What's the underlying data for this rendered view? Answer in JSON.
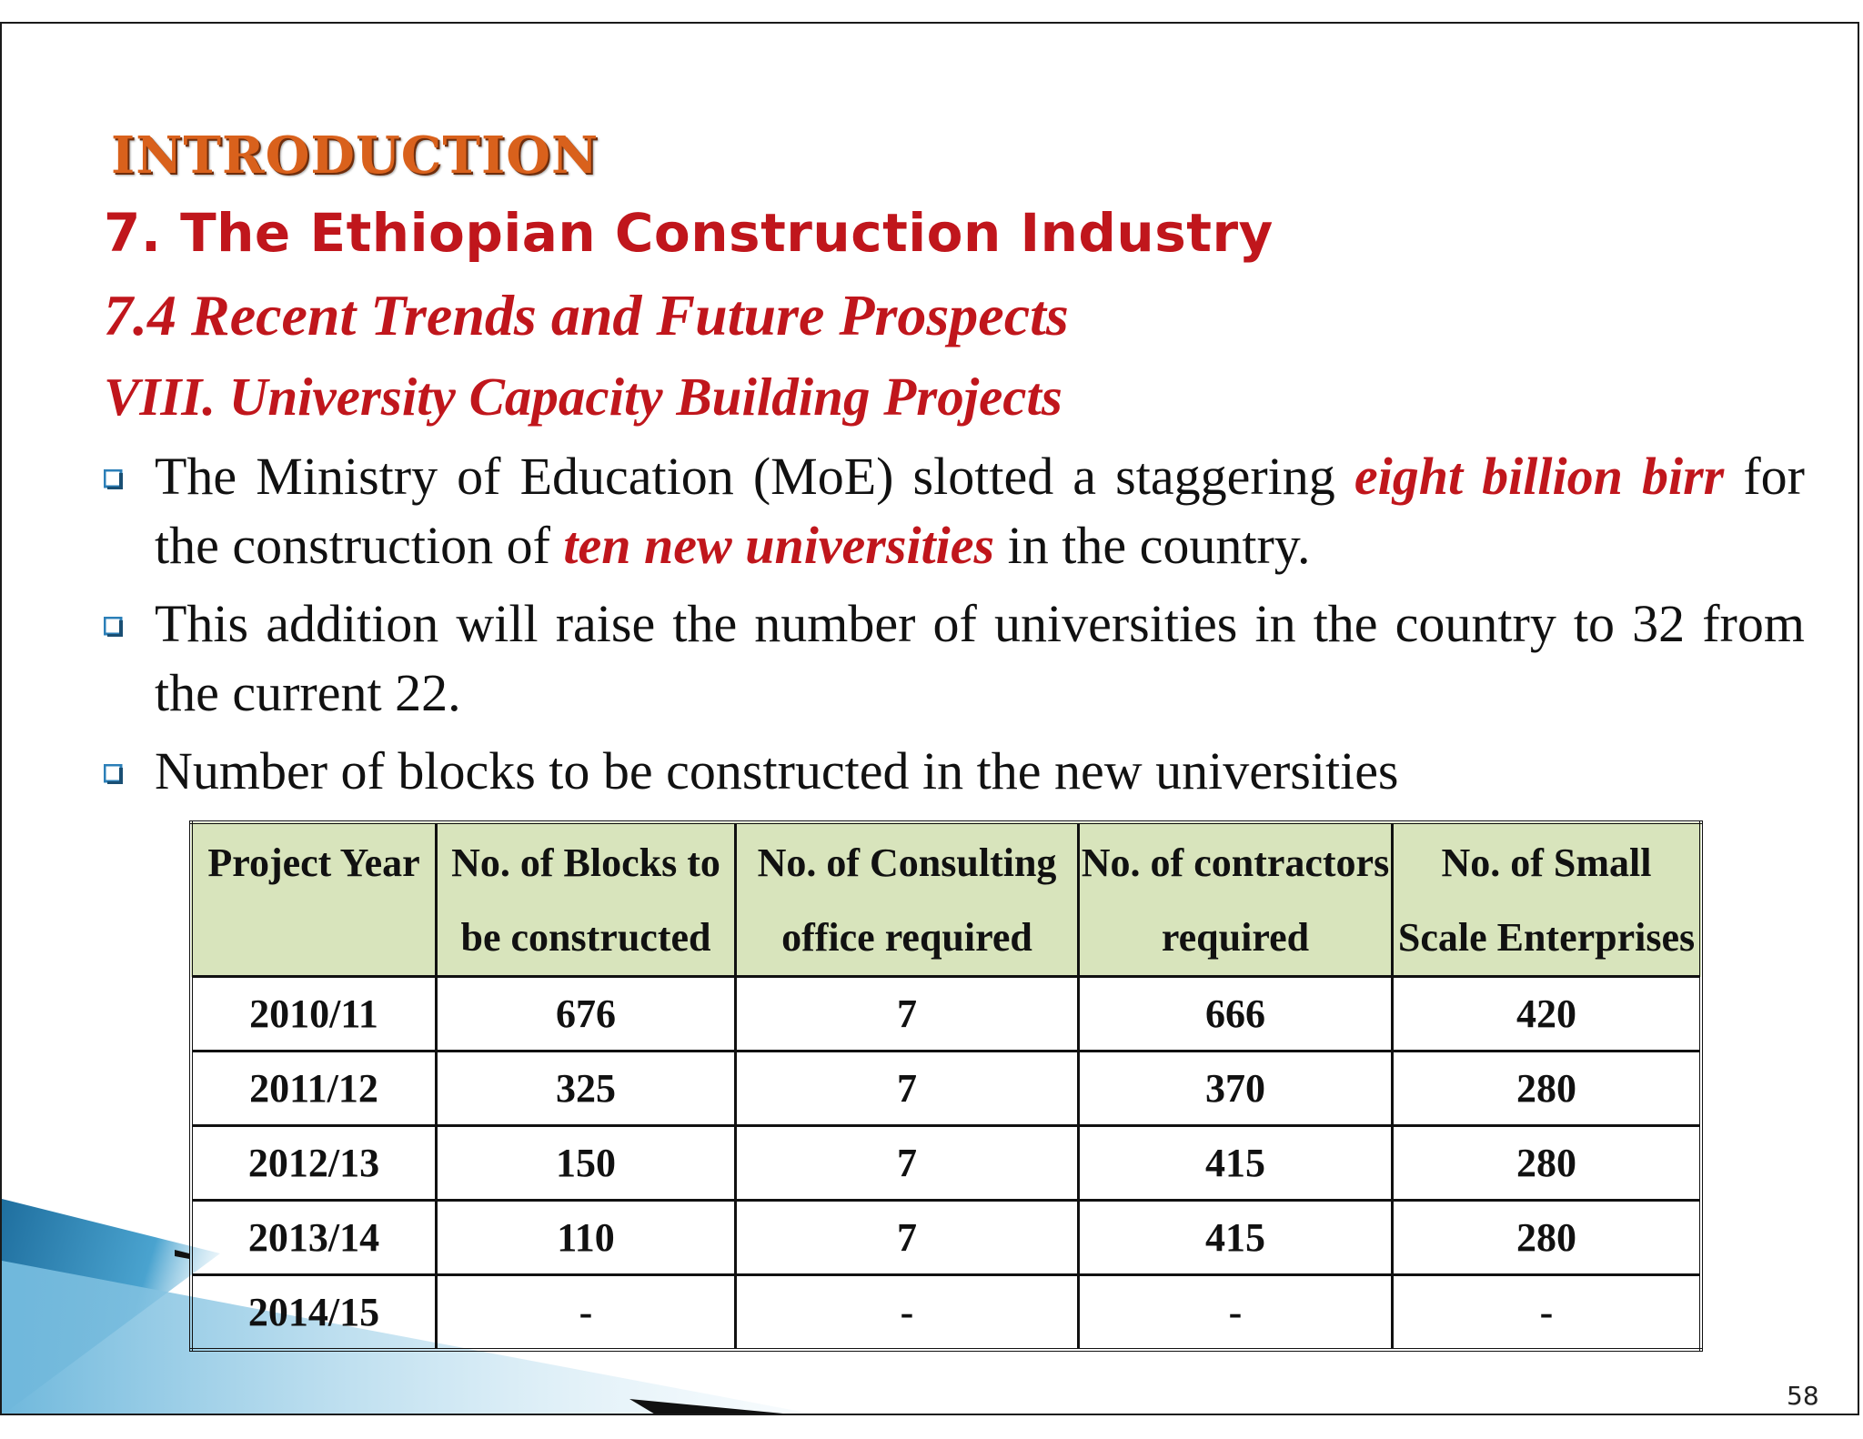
{
  "slide": {
    "kicker": "INTRODUCTION",
    "section_title": "7. The Ethiopian Construction Industry",
    "subsection_title": "7.4 Recent Trends and Future Prospects",
    "topic_title": "VIII. University Capacity Building Projects",
    "page_number": "58"
  },
  "bullets": [
    {
      "parts": [
        {
          "text": "The Ministry of Education (MoE) slotted a staggering ",
          "emphasis": false
        },
        {
          "text": "eight billion birr",
          "emphasis": true
        },
        {
          "text": " for the construction of ",
          "emphasis": false
        },
        {
          "text": "ten new universities",
          "emphasis": true
        },
        {
          "text": " in the country.",
          "emphasis": false
        }
      ]
    },
    {
      "parts": [
        {
          "text": "This addition will raise the number of universities in the country to 32 from the current 22.",
          "emphasis": false
        }
      ]
    },
    {
      "parts": [
        {
          "text": "Number of blocks to be constructed in the new universities",
          "emphasis": false
        }
      ]
    }
  ],
  "table": {
    "headers": [
      "Project Year",
      "No. of Blocks to be constructed",
      "No. of Consulting office required",
      "No. of contractors required",
      "No. of Small Scale Enterprises"
    ],
    "rows": [
      [
        "2010/11",
        "676",
        "7",
        "666",
        "420"
      ],
      [
        "2011/12",
        "325",
        "7",
        "370",
        "280"
      ],
      [
        "2012/13",
        "150",
        "7",
        "415",
        "280"
      ],
      [
        "2013/14",
        "110",
        "7",
        "415",
        "280"
      ],
      [
        "2014/15",
        "-",
        "-",
        "-",
        "-"
      ]
    ]
  },
  "colors": {
    "heading_red": "#c0161c",
    "kicker_orange": "#d9611c",
    "header_fill": "#d8e4bc",
    "bullet_marker": "#2b7fb8",
    "deco_blue": "#1f6f9f"
  },
  "icons": {
    "bullet_marker": "square-bullet-icon"
  }
}
